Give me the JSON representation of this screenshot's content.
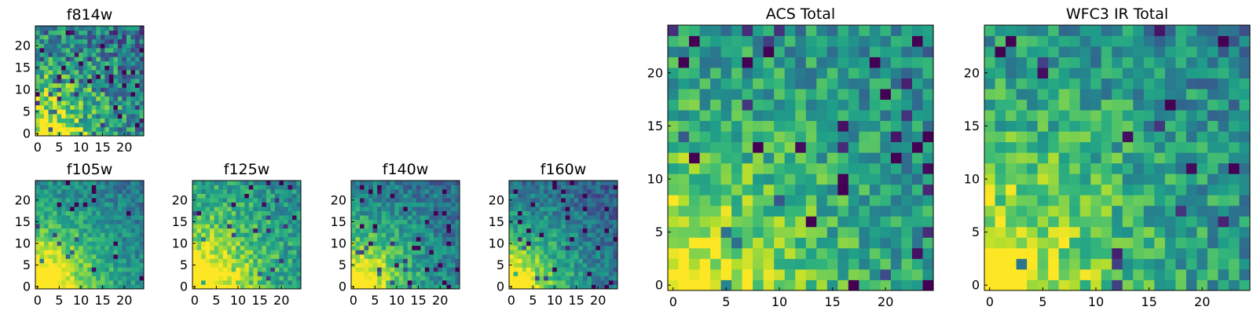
{
  "chart_data": [
    {
      "id": "f814w",
      "type": "heatmap",
      "title": "f814w",
      "size": 25,
      "xticks": [
        0,
        5,
        10,
        15,
        20
      ],
      "yticks": [
        0,
        5,
        10,
        15,
        20
      ],
      "xlim": [
        0,
        25
      ],
      "ylim": [
        0,
        25
      ],
      "colormap": "viridis",
      "seed": 814,
      "corner_boost": 0.75,
      "noise": 0.55,
      "dark_rate": 0.06,
      "base": 0.5
    },
    {
      "id": "f105w",
      "type": "heatmap",
      "title": "f105w",
      "size": 25,
      "xticks": [
        0,
        5,
        10,
        15,
        20
      ],
      "yticks": [
        0,
        5,
        10,
        15,
        20
      ],
      "xlim": [
        0,
        25
      ],
      "ylim": [
        0,
        25
      ],
      "colormap": "viridis",
      "seed": 105,
      "corner_boost": 0.95,
      "noise": 0.28,
      "dark_rate": 0.03,
      "base": 0.5
    },
    {
      "id": "f125w",
      "type": "heatmap",
      "title": "f125w",
      "size": 25,
      "xticks": [
        0,
        5,
        10,
        15,
        20
      ],
      "yticks": [
        0,
        5,
        10,
        15,
        20
      ],
      "xlim": [
        0,
        25
      ],
      "ylim": [
        0,
        25
      ],
      "colormap": "viridis",
      "seed": 125,
      "corner_boost": 0.85,
      "noise": 0.35,
      "dark_rate": 0.03,
      "base": 0.6
    },
    {
      "id": "f140w",
      "type": "heatmap",
      "title": "f140w",
      "size": 25,
      "xticks": [
        0,
        5,
        10,
        15,
        20
      ],
      "yticks": [
        0,
        5,
        10,
        15,
        20
      ],
      "xlim": [
        0,
        25
      ],
      "ylim": [
        0,
        25
      ],
      "colormap": "viridis",
      "seed": 140,
      "corner_boost": 0.9,
      "noise": 0.32,
      "dark_rate": 0.05,
      "base": 0.45
    },
    {
      "id": "f160w",
      "type": "heatmap",
      "title": "f160w",
      "size": 25,
      "xticks": [
        0,
        5,
        10,
        15,
        20
      ],
      "yticks": [
        0,
        5,
        10,
        15,
        20
      ],
      "xlim": [
        0,
        25
      ],
      "ylim": [
        0,
        25
      ],
      "colormap": "viridis",
      "seed": 160,
      "corner_boost": 0.9,
      "noise": 0.3,
      "dark_rate": 0.05,
      "base": 0.4
    },
    {
      "id": "acs-total",
      "type": "heatmap",
      "title": "ACS Total",
      "size": 25,
      "xticks": [
        0,
        5,
        10,
        15,
        20
      ],
      "yticks": [
        0,
        5,
        10,
        15,
        20
      ],
      "xlim": [
        0,
        25
      ],
      "ylim": [
        0,
        25
      ],
      "colormap": "viridis",
      "seed": 2001,
      "corner_boost": 0.55,
      "noise": 0.4,
      "dark_rate": 0.05,
      "base": 0.6
    },
    {
      "id": "wfc3-ir-total",
      "type": "heatmap",
      "title": "WFC3 IR Total",
      "size": 25,
      "xticks": [
        0,
        5,
        10,
        15,
        20
      ],
      "yticks": [
        0,
        5,
        10,
        15,
        20
      ],
      "xlim": [
        0,
        25
      ],
      "ylim": [
        0,
        25
      ],
      "colormap": "viridis",
      "seed": 3003,
      "corner_boost": 0.6,
      "noise": 0.4,
      "dark_rate": 0.04,
      "base": 0.58
    }
  ]
}
